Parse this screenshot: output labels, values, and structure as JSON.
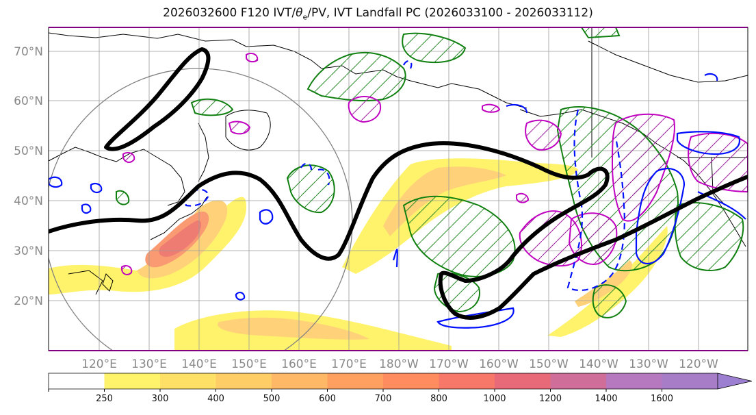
{
  "title": "2026032600 F120 IVT/θe/PV, IVT Landfall PC (2026033100 - 2026033112)",
  "title_parts": {
    "before": "2026032600 F120 IVT/",
    "theta": "θ",
    "sub": "e",
    "after": "/PV, IVT Landfall PC (2026033100 - 2026033112)"
  },
  "lat_labels": [
    "70°N",
    "60°N",
    "50°N",
    "40°N",
    "30°N",
    "20°N"
  ],
  "lon_labels": [
    "120°E",
    "130°E",
    "140°E",
    "150°E",
    "160°E",
    "170°E",
    "180°W",
    "170°W",
    "160°W",
    "150°W",
    "140°W",
    "130°W",
    "120°W"
  ],
  "colorbar": {
    "levels": [
      "250",
      "300",
      "400",
      "500",
      "600",
      "700",
      "800",
      "1000",
      "1200",
      "1400",
      "1600"
    ],
    "colors": [
      "#ffffff",
      "#fff36b",
      "#ffe066",
      "#ffcd66",
      "#ffb866",
      "#ffa060",
      "#ff8c5e",
      "#f77868",
      "#e86a78",
      "#cf6e98",
      "#b679c0",
      "#a77dc8",
      "#9c7fd0"
    ]
  },
  "colors": {
    "jet": "#000000",
    "theta_e": "#008000",
    "pv": "#c000c0",
    "ivt_contour": "#0000ff",
    "circle": "#808080",
    "axis_label": "#888888"
  }
}
